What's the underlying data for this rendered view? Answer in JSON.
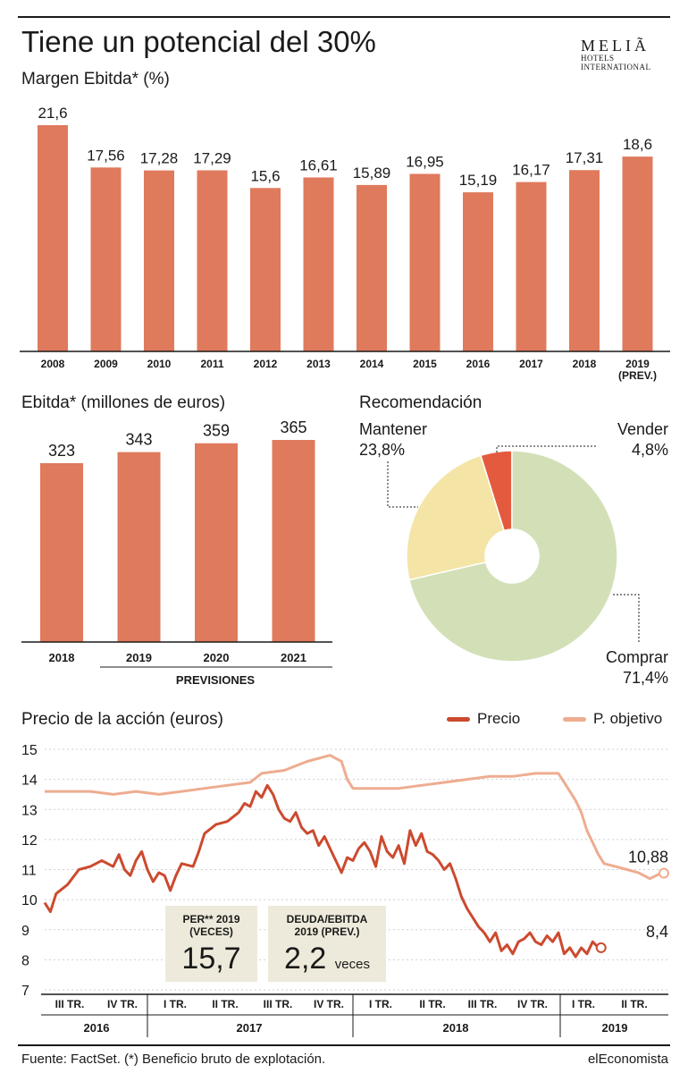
{
  "header": {
    "title": "Tiene un potencial del 30%",
    "logo_main": "MELIÃ",
    "logo_sub1": "HOTELS",
    "logo_sub2": "INTERNATIONAL"
  },
  "sections": {
    "margin_title": "Margen Ebitda* (%)",
    "ebitda_title": "Ebitda* (millones de euros)",
    "reco_title": "Recomendación",
    "price_title": "Precio de la acción (euros)"
  },
  "colors": {
    "bar": "#df7a5c",
    "price": "#cc4a2f",
    "target": "#eeac90",
    "comprar": "#d3e0b7",
    "mantener": "#f4e4a6",
    "vender": "#e45a3e",
    "box": "#eeeadb"
  },
  "chart_data": [
    {
      "type": "bar",
      "title": "Margen Ebitda* (%)",
      "categories": [
        "2008",
        "2009",
        "2010",
        "2011",
        "2012",
        "2013",
        "2014",
        "2015",
        "2016",
        "2017",
        "2018",
        "2019"
      ],
      "category_sublabels": [
        "",
        "",
        "",
        "",
        "",
        "",
        "",
        "",
        "",
        "",
        "",
        "(PREV.)"
      ],
      "value_labels": [
        "21,6",
        "17,56",
        "17,28",
        "17,29",
        "15,6",
        "16,61",
        "15,89",
        "16,95",
        "15,19",
        "16,17",
        "17,31",
        "18,6"
      ],
      "values": [
        21.6,
        17.56,
        17.28,
        17.29,
        15.6,
        16.61,
        15.89,
        16.95,
        15.19,
        16.17,
        17.31,
        18.6
      ],
      "ylim": [
        0,
        21.6
      ]
    },
    {
      "type": "bar",
      "title": "Ebitda* (millones de euros)",
      "categories": [
        "2018",
        "2019",
        "2020",
        "2021"
      ],
      "values": [
        323,
        343,
        359,
        365
      ],
      "group_label": "PREVISIONES",
      "ylim": [
        0,
        365
      ]
    },
    {
      "type": "pie",
      "title": "Recomendación",
      "slices": [
        {
          "name": "Vender",
          "label": "4,8%",
          "value": 4.8
        },
        {
          "name": "Comprar",
          "label": "71,4%",
          "value": 71.4
        },
        {
          "name": "Mantener",
          "label": "23,8%",
          "value": 23.8
        }
      ]
    },
    {
      "type": "line",
      "title": "Precio de la acción (euros)",
      "ylim": [
        7,
        15
      ],
      "y_ticks": [
        "7",
        "8",
        "9",
        "10",
        "11",
        "12",
        "13",
        "14",
        "15"
      ],
      "quarter_labels": [
        "III TR.",
        "IV TR.",
        "I TR.",
        "II TR.",
        "III TR.",
        "IV TR.",
        "I TR.",
        "II TR.",
        "III TR.",
        "IV TR.",
        "I TR.",
        "II TR."
      ],
      "year_labels": [
        "2016",
        "2017",
        "2018",
        "2019"
      ],
      "series": [
        {
          "name": "Precio",
          "end_label": "8,4",
          "points": [
            [
              0,
              9.9
            ],
            [
              1,
              9.6
            ],
            [
              2,
              10.2
            ],
            [
              4,
              10.5
            ],
            [
              6,
              11
            ],
            [
              8,
              11.1
            ],
            [
              10,
              11.3
            ],
            [
              12,
              11.1
            ],
            [
              13,
              11.5
            ],
            [
              14,
              11
            ],
            [
              15,
              10.8
            ],
            [
              16,
              11.3
            ],
            [
              17,
              11.6
            ],
            [
              18,
              11
            ],
            [
              19,
              10.6
            ],
            [
              20,
              10.9
            ],
            [
              21,
              10.8
            ],
            [
              22,
              10.3
            ],
            [
              23,
              10.8
            ],
            [
              24,
              11.2
            ],
            [
              26,
              11.1
            ],
            [
              27,
              11.6
            ],
            [
              28,
              12.2
            ],
            [
              30,
              12.5
            ],
            [
              32,
              12.6
            ],
            [
              34,
              12.9
            ],
            [
              35,
              13.2
            ],
            [
              36,
              13.1
            ],
            [
              37,
              13.6
            ],
            [
              38,
              13.4
            ],
            [
              39,
              13.8
            ],
            [
              40,
              13.5
            ],
            [
              41,
              13.0
            ],
            [
              42,
              12.7
            ],
            [
              43,
              12.6
            ],
            [
              44,
              12.9
            ],
            [
              45,
              12.4
            ],
            [
              46,
              12.2
            ],
            [
              47,
              12.3
            ],
            [
              48,
              11.8
            ],
            [
              49,
              12.1
            ],
            [
              50,
              11.7
            ],
            [
              51,
              11.3
            ],
            [
              52,
              10.9
            ],
            [
              53,
              11.4
            ],
            [
              54,
              11.3
            ],
            [
              55,
              11.7
            ],
            [
              56,
              11.9
            ],
            [
              57,
              11.6
            ],
            [
              58,
              11.1
            ],
            [
              59,
              12.1
            ],
            [
              60,
              11.6
            ],
            [
              61,
              11.4
            ],
            [
              62,
              11.8
            ],
            [
              63,
              11.2
            ],
            [
              64,
              12.3
            ],
            [
              65,
              11.8
            ],
            [
              66,
              12.2
            ],
            [
              67,
              11.6
            ],
            [
              68,
              11.5
            ],
            [
              69,
              11.3
            ],
            [
              70,
              11.0
            ],
            [
              71,
              11.2
            ],
            [
              72,
              10.7
            ],
            [
              73,
              10.1
            ],
            [
              74,
              9.7
            ],
            [
              75,
              9.4
            ],
            [
              76,
              9.1
            ],
            [
              77,
              8.9
            ],
            [
              78,
              8.6
            ],
            [
              79,
              8.9
            ],
            [
              80,
              8.3
            ],
            [
              81,
              8.5
            ],
            [
              82,
              8.2
            ],
            [
              83,
              8.6
            ],
            [
              84,
              8.7
            ],
            [
              85,
              8.9
            ],
            [
              86,
              8.6
            ],
            [
              87,
              8.5
            ],
            [
              88,
              8.8
            ],
            [
              89,
              8.6
            ],
            [
              90,
              8.9
            ],
            [
              91,
              8.2
            ],
            [
              92,
              8.4
            ],
            [
              93,
              8.1
            ],
            [
              94,
              8.4
            ],
            [
              95,
              8.2
            ],
            [
              96,
              8.6
            ],
            [
              97,
              8.4
            ]
          ]
        },
        {
          "name": "P. objetivo",
          "end_label": "10,88",
          "points": [
            [
              0,
              13.6
            ],
            [
              4,
              13.6
            ],
            [
              8,
              13.6
            ],
            [
              12,
              13.5
            ],
            [
              16,
              13.6
            ],
            [
              20,
              13.5
            ],
            [
              24,
              13.6
            ],
            [
              28,
              13.7
            ],
            [
              32,
              13.8
            ],
            [
              36,
              13.9
            ],
            [
              38,
              14.2
            ],
            [
              42,
              14.3
            ],
            [
              46,
              14.6
            ],
            [
              50,
              14.8
            ],
            [
              52,
              14.6
            ],
            [
              53,
              14.0
            ],
            [
              54,
              13.7
            ],
            [
              58,
              13.7
            ],
            [
              62,
              13.7
            ],
            [
              66,
              13.8
            ],
            [
              70,
              13.9
            ],
            [
              74,
              14.0
            ],
            [
              78,
              14.1
            ],
            [
              82,
              14.1
            ],
            [
              86,
              14.2
            ],
            [
              88,
              14.2
            ],
            [
              90,
              14.2
            ],
            [
              91,
              13.9
            ],
            [
              92,
              13.6
            ],
            [
              93,
              13.3
            ],
            [
              94,
              12.9
            ],
            [
              95,
              12.3
            ],
            [
              96,
              11.9
            ],
            [
              97,
              11.5
            ],
            [
              98,
              11.2
            ],
            [
              100,
              11.1
            ],
            [
              102,
              11.0
            ],
            [
              104,
              10.9
            ],
            [
              106,
              10.7
            ],
            [
              108,
              10.88
            ]
          ]
        }
      ]
    }
  ],
  "boxes": [
    {
      "label1": "PER** 2019",
      "label2": "(VECES)",
      "value": "15,7",
      "unit": ""
    },
    {
      "label1": "DEUDA/EBITDA",
      "label2": "2019 (PREV.)",
      "value": "2,2",
      "unit": "veces"
    }
  ],
  "footer": {
    "source": "Fuente: FactSet. (*) Beneficio bruto de explotación.",
    "brand": "elEconomista"
  }
}
